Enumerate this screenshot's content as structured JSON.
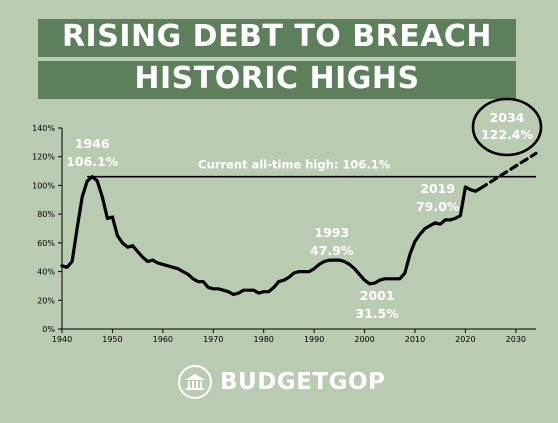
{
  "header": {
    "line1": "RISING DEBT TO BREACH",
    "line2": "HISTORIC HIGHS"
  },
  "brand": {
    "name": "BUDGETGOP",
    "logo_icon": "capitol-building-icon"
  },
  "colors": {
    "background": "#b9cbb1",
    "banner": "#5e7f5b",
    "line": "#000000",
    "label_text": "#ffffff"
  },
  "chart_data": {
    "type": "line",
    "title": "",
    "xlabel": "",
    "ylabel": "",
    "xlim": [
      1940,
      2034
    ],
    "ylim": [
      0,
      140
    ],
    "x_ticks": [
      "1940",
      "1950",
      "1960",
      "1970",
      "1980",
      "1990",
      "2000",
      "2010",
      "2020",
      "2030"
    ],
    "y_ticks": [
      "0%",
      "20%",
      "40%",
      "60%",
      "80%",
      "100%",
      "120%",
      "140%"
    ],
    "grid": false,
    "series": [
      {
        "style": "solid",
        "x": [
          1940,
          1941,
          1942,
          1943,
          1944,
          1945,
          1946,
          1947,
          1948,
          1949,
          1950,
          1951,
          1952,
          1953,
          1954,
          1955,
          1956,
          1957,
          1958,
          1959,
          1960,
          1961,
          1962,
          1963,
          1964,
          1965,
          1966,
          1967,
          1968,
          1969,
          1970,
          1971,
          1972,
          1973,
          1974,
          1975,
          1976,
          1977,
          1978,
          1979,
          1980,
          1981,
          1982,
          1983,
          1984,
          1985,
          1986,
          1987,
          1988,
          1989,
          1990,
          1991,
          1992,
          1993,
          1994,
          1995,
          1996,
          1997,
          1998,
          1999,
          2000,
          2001,
          2002,
          2003,
          2004,
          2005,
          2006,
          2007,
          2008,
          2009,
          2010,
          2011,
          2012,
          2013,
          2014,
          2015,
          2016,
          2017,
          2018,
          2019,
          2020,
          2021,
          2022,
          2023
        ],
        "y": [
          44,
          43,
          47,
          70,
          92,
          103,
          106.1,
          103,
          92,
          77,
          78,
          65,
          60,
          57,
          58,
          54,
          50,
          47,
          48,
          46,
          45,
          44,
          43,
          42,
          40,
          38,
          35,
          33,
          33,
          29,
          28,
          28,
          27,
          26,
          24,
          25,
          27,
          27,
          27,
          25,
          26,
          26,
          29,
          33,
          34,
          36,
          39,
          40,
          40,
          40,
          42,
          45,
          47,
          47.9,
          48,
          48,
          47,
          45,
          42,
          38,
          34,
          31.5,
          32,
          34,
          35,
          35,
          35,
          35,
          39,
          52,
          61,
          66,
          70,
          72,
          74,
          73,
          76,
          76,
          77,
          79.0,
          99,
          97,
          96,
          98
        ]
      },
      {
        "style": "dashed",
        "x": [
          2023,
          2034
        ],
        "y": [
          98,
          122.4
        ]
      }
    ],
    "reference_line": {
      "y": 106.1,
      "label": "Current all-time high: 106.1%"
    },
    "annotations": [
      {
        "year": "1946",
        "value": "106.1%"
      },
      {
        "year": "1993",
        "value": "47.9%"
      },
      {
        "year": "2001",
        "value": "31.5%"
      },
      {
        "year": "2019",
        "value": "79.0%"
      },
      {
        "year": "2034",
        "value": "122.4%",
        "circled": true
      }
    ]
  }
}
